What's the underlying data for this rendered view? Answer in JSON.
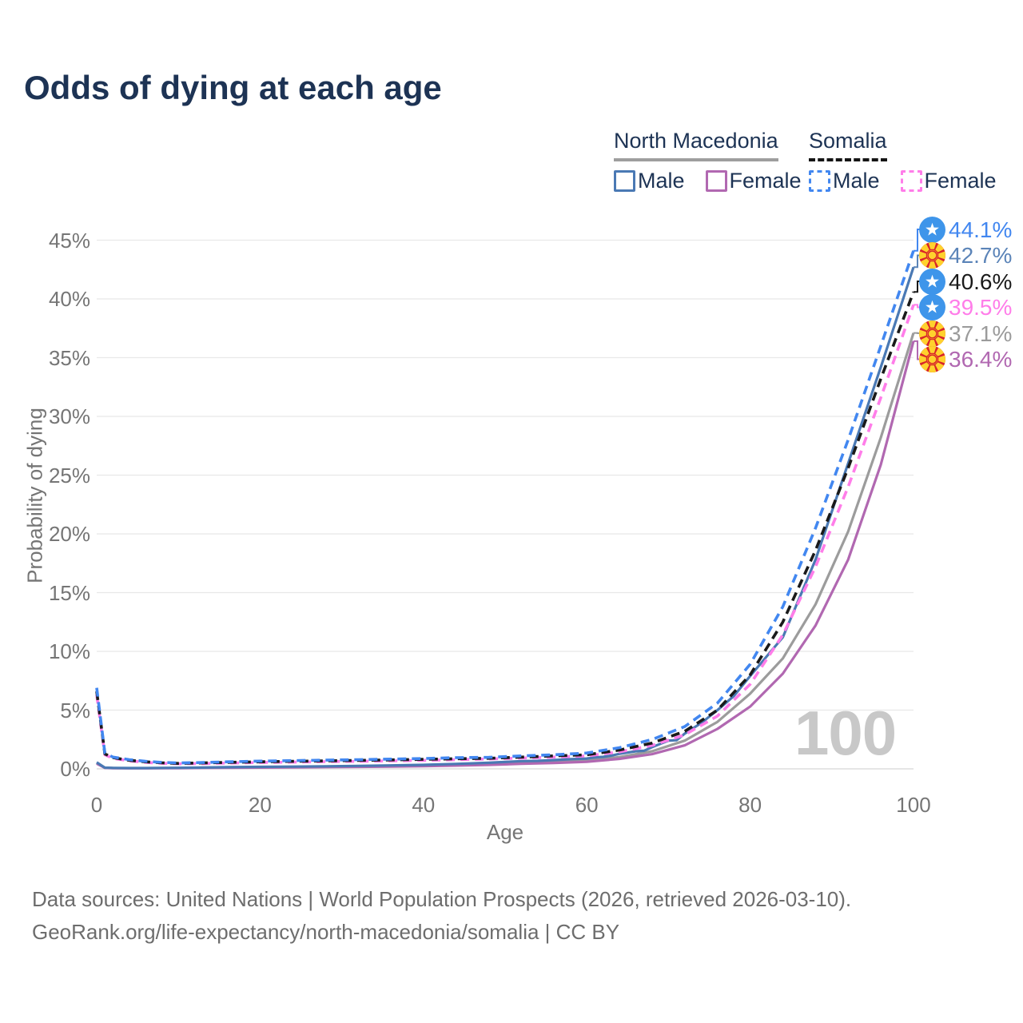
{
  "title": "Odds of dying at each age",
  "legend": {
    "groups": [
      {
        "name": "North Macedonia",
        "line_style": "solid",
        "underline_color": "#9e9e9e",
        "items": [
          {
            "label": "Male",
            "color": "#4A79B4",
            "dashed": false
          },
          {
            "label": "Female",
            "color": "#B168B1",
            "dashed": false
          }
        ]
      },
      {
        "name": "Somalia",
        "line_style": "dashed",
        "underline_color": "#141414",
        "items": [
          {
            "label": "Male",
            "color": "#4287F0",
            "dashed": true
          },
          {
            "label": "Female",
            "color": "#FF7DE9",
            "dashed": true
          }
        ]
      }
    ]
  },
  "axes": {
    "y_title": "Probability of dying",
    "x_title": "Age",
    "y_ticks": [
      "45%",
      "40%",
      "35%",
      "30%",
      "25%",
      "20%",
      "15%",
      "10%",
      "5%",
      "0%"
    ],
    "x_ticks": [
      "0",
      "20",
      "40",
      "60",
      "80",
      "100"
    ]
  },
  "value_labels": [
    {
      "text": "44.1%",
      "flag": "somalia",
      "color": "#4287F0",
      "series": "somalia_male"
    },
    {
      "text": "42.7%",
      "flag": "north-macedonia",
      "color": "#5B84B8",
      "series": "north_macedonia_male"
    },
    {
      "text": "40.6%",
      "flag": "somalia",
      "color": "#1a1a1a",
      "series": "somalia_both"
    },
    {
      "text": "39.5%",
      "flag": "somalia",
      "color": "#FF7DE9",
      "series": "somalia_female"
    },
    {
      "text": "37.1%",
      "flag": "north-macedonia",
      "color": "#9b9b9b",
      "series": "north_macedonia_both"
    },
    {
      "text": "36.4%",
      "flag": "north-macedonia",
      "color": "#B168B1",
      "series": "north_macedonia_female"
    }
  ],
  "hover_age_indicator": "100",
  "flags": {
    "somalia": {
      "background": "#3E95EA",
      "star": "#ffffff"
    },
    "north_macedonia": {
      "background": "#D8232A",
      "sun": "#FFD12D"
    }
  },
  "footer": {
    "line1": "Data sources: United Nations | World Population Prospects (2026, retrieved 2026-03-10).",
    "line2": "GeoRank.org/life-expectancy/north-macedonia/somalia | CC BY"
  },
  "chart_data": {
    "type": "line",
    "title": "Odds of dying at each age",
    "xlabel": "Age",
    "ylabel": "Probability of dying",
    "x_range": [
      0,
      100
    ],
    "y_range_percent": [
      0,
      45
    ],
    "grid": "horizontal-only",
    "legend_position": "top-right",
    "units": "percent probability of dying at each age",
    "series": [
      {
        "id": "north_macedonia_both",
        "name": "North Macedonia (both sexes)",
        "country": "North Macedonia",
        "sex": "both",
        "color": "#9C9C9C",
        "dashed": false,
        "end_value_percent": 37.1,
        "points": [
          [
            0,
            0.5
          ],
          [
            1,
            0.09
          ],
          [
            2,
            0.07
          ],
          [
            4,
            0.06
          ],
          [
            6,
            0.06
          ],
          [
            8,
            0.07
          ],
          [
            10,
            0.08
          ],
          [
            13,
            0.1
          ],
          [
            16,
            0.12
          ],
          [
            20,
            0.14
          ],
          [
            24,
            0.16
          ],
          [
            28,
            0.18
          ],
          [
            32,
            0.2
          ],
          [
            36,
            0.24
          ],
          [
            40,
            0.28
          ],
          [
            44,
            0.34
          ],
          [
            48,
            0.43
          ],
          [
            52,
            0.55
          ],
          [
            56,
            0.62
          ],
          [
            60,
            0.72
          ],
          [
            64,
            1.0
          ],
          [
            68,
            1.5
          ],
          [
            72,
            2.4
          ],
          [
            76,
            4.0
          ],
          [
            80,
            6.4
          ],
          [
            84,
            9.4
          ],
          [
            88,
            14.0
          ],
          [
            92,
            20.2
          ],
          [
            96,
            28.2
          ],
          [
            100,
            37.1
          ]
        ]
      },
      {
        "id": "north_macedonia_female",
        "name": "North Macedonia Female",
        "country": "North Macedonia",
        "sex": "female",
        "color": "#B168B1",
        "dashed": false,
        "end_value_percent": 36.4,
        "points": [
          [
            0,
            0.45
          ],
          [
            1,
            0.08
          ],
          [
            2,
            0.06
          ],
          [
            4,
            0.05
          ],
          [
            6,
            0.05
          ],
          [
            8,
            0.06
          ],
          [
            10,
            0.06
          ],
          [
            13,
            0.08
          ],
          [
            16,
            0.09
          ],
          [
            20,
            0.11
          ],
          [
            24,
            0.13
          ],
          [
            28,
            0.15
          ],
          [
            32,
            0.17
          ],
          [
            36,
            0.19
          ],
          [
            40,
            0.23
          ],
          [
            44,
            0.28
          ],
          [
            48,
            0.34
          ],
          [
            52,
            0.43
          ],
          [
            56,
            0.5
          ],
          [
            60,
            0.6
          ],
          [
            64,
            0.85
          ],
          [
            68,
            1.25
          ],
          [
            72,
            2.0
          ],
          [
            76,
            3.4
          ],
          [
            80,
            5.3
          ],
          [
            84,
            8.1
          ],
          [
            88,
            12.2
          ],
          [
            92,
            17.8
          ],
          [
            96,
            25.9
          ],
          [
            100,
            36.4
          ]
        ]
      },
      {
        "id": "north_macedonia_male",
        "name": "North Macedonia Male",
        "country": "North Macedonia",
        "sex": "male",
        "color": "#4A79B4",
        "dashed": false,
        "end_value_percent": 42.7,
        "points": [
          [
            0,
            0.55
          ],
          [
            1,
            0.1
          ],
          [
            2,
            0.08
          ],
          [
            4,
            0.07
          ],
          [
            6,
            0.07
          ],
          [
            8,
            0.08
          ],
          [
            10,
            0.09
          ],
          [
            13,
            0.11
          ],
          [
            16,
            0.14
          ],
          [
            20,
            0.17
          ],
          [
            24,
            0.19
          ],
          [
            28,
            0.22
          ],
          [
            32,
            0.25
          ],
          [
            36,
            0.29
          ],
          [
            40,
            0.34
          ],
          [
            44,
            0.42
          ],
          [
            48,
            0.52
          ],
          [
            52,
            0.66
          ],
          [
            54,
            0.68
          ],
          [
            56,
            0.75
          ],
          [
            58,
            0.82
          ],
          [
            60,
            0.88
          ],
          [
            61,
            0.97
          ],
          [
            62,
            1.02
          ],
          [
            63,
            1.12
          ],
          [
            64,
            1.28
          ],
          [
            66,
            1.5
          ],
          [
            67,
            1.54
          ],
          [
            68,
            1.85
          ],
          [
            70,
            2.4
          ],
          [
            71,
            2.44
          ],
          [
            72,
            3.0
          ],
          [
            74,
            3.9
          ],
          [
            76,
            5.0
          ],
          [
            78,
            6.2
          ],
          [
            80,
            7.9
          ],
          [
            84,
            11.2
          ],
          [
            88,
            17.8
          ],
          [
            92,
            26.0
          ],
          [
            96,
            34.2
          ],
          [
            100,
            42.7
          ]
        ]
      },
      {
        "id": "somalia_female",
        "name": "Somalia Female",
        "country": "Somalia",
        "sex": "female",
        "color": "#FF7DE9",
        "dashed": true,
        "end_value_percent": 39.5,
        "points": [
          [
            0,
            6.3
          ],
          [
            1,
            1.2
          ],
          [
            2,
            0.9
          ],
          [
            4,
            0.68
          ],
          [
            6,
            0.55
          ],
          [
            8,
            0.47
          ],
          [
            10,
            0.43
          ],
          [
            13,
            0.45
          ],
          [
            16,
            0.49
          ],
          [
            20,
            0.54
          ],
          [
            24,
            0.57
          ],
          [
            28,
            0.61
          ],
          [
            32,
            0.64
          ],
          [
            36,
            0.68
          ],
          [
            40,
            0.72
          ],
          [
            44,
            0.78
          ],
          [
            48,
            0.84
          ],
          [
            52,
            0.92
          ],
          [
            56,
            1.0
          ],
          [
            60,
            1.1
          ],
          [
            64,
            1.45
          ],
          [
            68,
            2.0
          ],
          [
            72,
            2.9
          ],
          [
            76,
            4.5
          ],
          [
            80,
            7.2
          ],
          [
            84,
            11.4
          ],
          [
            88,
            17.2
          ],
          [
            92,
            24.0
          ],
          [
            96,
            31.6
          ],
          [
            100,
            39.5
          ]
        ]
      },
      {
        "id": "somalia_both",
        "name": "Somalia (both sexes)",
        "country": "Somalia",
        "sex": "both",
        "color": "#1a1a1a",
        "dashed": true,
        "end_value_percent": 40.6,
        "points": [
          [
            0,
            6.6
          ],
          [
            1,
            1.28
          ],
          [
            2,
            0.95
          ],
          [
            4,
            0.73
          ],
          [
            6,
            0.6
          ],
          [
            8,
            0.51
          ],
          [
            10,
            0.46
          ],
          [
            13,
            0.5
          ],
          [
            16,
            0.55
          ],
          [
            20,
            0.6
          ],
          [
            24,
            0.64
          ],
          [
            28,
            0.68
          ],
          [
            32,
            0.72
          ],
          [
            36,
            0.76
          ],
          [
            40,
            0.81
          ],
          [
            44,
            0.86
          ],
          [
            48,
            0.9
          ],
          [
            52,
            1.0
          ],
          [
            56,
            1.1
          ],
          [
            60,
            1.2
          ],
          [
            64,
            1.6
          ],
          [
            68,
            2.2
          ],
          [
            72,
            3.2
          ],
          [
            76,
            5.0
          ],
          [
            80,
            8.0
          ],
          [
            84,
            12.5
          ],
          [
            88,
            18.6
          ],
          [
            92,
            25.6
          ],
          [
            96,
            33.2
          ],
          [
            100,
            40.6
          ]
        ]
      },
      {
        "id": "somalia_male",
        "name": "Somalia Male",
        "country": "Somalia",
        "sex": "male",
        "color": "#4287F0",
        "dashed": true,
        "end_value_percent": 44.1,
        "points": [
          [
            0,
            6.9
          ],
          [
            1,
            1.35
          ],
          [
            2,
            1.0
          ],
          [
            4,
            0.78
          ],
          [
            6,
            0.64
          ],
          [
            8,
            0.55
          ],
          [
            10,
            0.5
          ],
          [
            13,
            0.54
          ],
          [
            16,
            0.6
          ],
          [
            20,
            0.66
          ],
          [
            24,
            0.7
          ],
          [
            28,
            0.74
          ],
          [
            32,
            0.78
          ],
          [
            36,
            0.83
          ],
          [
            40,
            0.88
          ],
          [
            44,
            0.95
          ],
          [
            48,
            0.98
          ],
          [
            52,
            1.1
          ],
          [
            56,
            1.2
          ],
          [
            60,
            1.35
          ],
          [
            64,
            1.8
          ],
          [
            68,
            2.5
          ],
          [
            72,
            3.6
          ],
          [
            76,
            5.6
          ],
          [
            80,
            8.9
          ],
          [
            84,
            13.8
          ],
          [
            88,
            20.5
          ],
          [
            92,
            28.0
          ],
          [
            96,
            36.0
          ],
          [
            100,
            44.1
          ]
        ]
      }
    ]
  }
}
